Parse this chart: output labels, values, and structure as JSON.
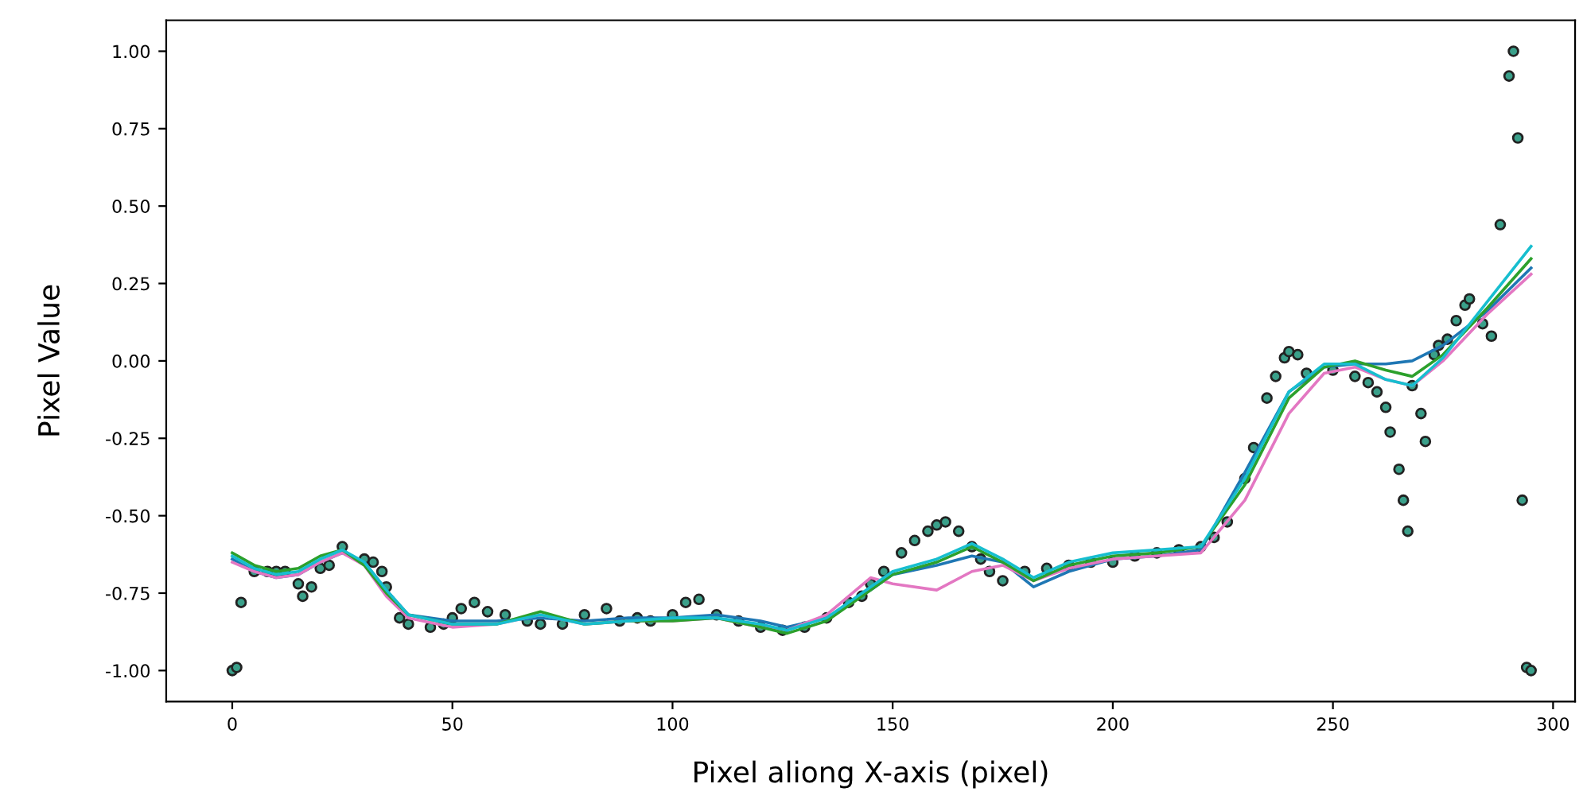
{
  "chart_data": {
    "type": "line",
    "xlabel": "Pixel aliong X-axis (pixel)",
    "ylabel": "Pixel Value",
    "xlim": [
      -15,
      305
    ],
    "ylim": [
      -1.1,
      1.1
    ],
    "xticks": [
      0,
      50,
      100,
      150,
      200,
      250,
      300
    ],
    "yticks": [
      {
        "value": -1,
        "label": "-1.00"
      },
      {
        "value": -0.75,
        "label": "-0.75"
      },
      {
        "value": -0.5,
        "label": "-0.50"
      },
      {
        "value": -0.25,
        "label": "-0.25"
      },
      {
        "value": 0,
        "label": "0.00"
      },
      {
        "value": 0.25,
        "label": "0.25"
      },
      {
        "value": 0.5,
        "label": "0.50"
      },
      {
        "value": 0.75,
        "label": "0.75"
      },
      {
        "value": 1,
        "label": "1.00"
      }
    ],
    "grid": false,
    "series": [
      {
        "type": "scatter",
        "color": "#3aa08a",
        "marker": "circle",
        "x": [
          0,
          1,
          2,
          5,
          8,
          10,
          12,
          15,
          16,
          18,
          20,
          22,
          25,
          30,
          32,
          34,
          35,
          38,
          40,
          45,
          48,
          50,
          52,
          55,
          58,
          62,
          67,
          70,
          75,
          80,
          85,
          88,
          92,
          95,
          100,
          103,
          106,
          110,
          115,
          120,
          125,
          130,
          135,
          140,
          143,
          145,
          148,
          152,
          155,
          158,
          160,
          162,
          165,
          168,
          170,
          172,
          175,
          180,
          185,
          190,
          195,
          200,
          205,
          210,
          215,
          220,
          223,
          226,
          230,
          232,
          235,
          237,
          239,
          240,
          242,
          244,
          250,
          255,
          258,
          260,
          262,
          263,
          265,
          266,
          267,
          268,
          270,
          271,
          273,
          274,
          276,
          278,
          280,
          281,
          284,
          286,
          288,
          290,
          291,
          292,
          293,
          294,
          295
        ],
        "values": [
          -1.0,
          -0.99,
          -0.78,
          -0.68,
          -0.68,
          -0.68,
          -0.68,
          -0.72,
          -0.76,
          -0.73,
          -0.67,
          -0.66,
          -0.6,
          -0.64,
          -0.65,
          -0.68,
          -0.73,
          -0.83,
          -0.85,
          -0.86,
          -0.85,
          -0.83,
          -0.8,
          -0.78,
          -0.81,
          -0.82,
          -0.84,
          -0.85,
          -0.85,
          -0.82,
          -0.8,
          -0.84,
          -0.83,
          -0.84,
          -0.82,
          -0.78,
          -0.77,
          -0.82,
          -0.84,
          -0.86,
          -0.87,
          -0.86,
          -0.83,
          -0.78,
          -0.76,
          -0.72,
          -0.68,
          -0.62,
          -0.58,
          -0.55,
          -0.53,
          -0.52,
          -0.55,
          -0.6,
          -0.64,
          -0.68,
          -0.71,
          -0.68,
          -0.67,
          -0.66,
          -0.65,
          -0.65,
          -0.63,
          -0.62,
          -0.61,
          -0.6,
          -0.57,
          -0.52,
          -0.38,
          -0.28,
          -0.12,
          -0.05,
          0.01,
          0.03,
          0.02,
          -0.04,
          -0.03,
          -0.05,
          -0.07,
          -0.1,
          -0.15,
          -0.23,
          -0.35,
          -0.45,
          -0.55,
          -0.08,
          -0.17,
          -0.26,
          0.02,
          0.05,
          0.07,
          0.13,
          0.18,
          0.2,
          0.12,
          0.08,
          0.44,
          0.92,
          1.0,
          0.72,
          -0.45,
          -0.99,
          -1.0
        ]
      },
      {
        "color": "#1f77b4",
        "x": [
          0,
          5,
          10,
          15,
          20,
          25,
          30,
          35,
          40,
          50,
          60,
          70,
          80,
          90,
          100,
          110,
          120,
          126,
          135,
          145,
          150,
          160,
          168,
          175,
          182,
          190,
          200,
          210,
          220,
          230,
          240,
          248,
          255,
          262,
          268,
          275,
          285,
          295
        ],
        "values": [
          -0.64,
          -0.68,
          -0.7,
          -0.69,
          -0.65,
          -0.62,
          -0.65,
          -0.74,
          -0.82,
          -0.84,
          -0.84,
          -0.83,
          -0.84,
          -0.83,
          -0.83,
          -0.82,
          -0.84,
          -0.86,
          -0.83,
          -0.74,
          -0.69,
          -0.66,
          -0.63,
          -0.65,
          -0.73,
          -0.68,
          -0.64,
          -0.63,
          -0.61,
          -0.36,
          -0.1,
          -0.02,
          -0.01,
          -0.01,
          0.0,
          0.05,
          0.16,
          0.3
        ]
      },
      {
        "color": "#e377c2",
        "x": [
          0,
          5,
          10,
          15,
          20,
          25,
          30,
          35,
          40,
          50,
          60,
          70,
          80,
          90,
          100,
          110,
          120,
          126,
          135,
          145,
          150,
          160,
          168,
          175,
          182,
          190,
          200,
          210,
          220,
          230,
          240,
          248,
          255,
          262,
          268,
          275,
          285,
          295
        ],
        "values": [
          -0.65,
          -0.68,
          -0.7,
          -0.69,
          -0.65,
          -0.62,
          -0.66,
          -0.76,
          -0.83,
          -0.86,
          -0.85,
          -0.82,
          -0.85,
          -0.84,
          -0.84,
          -0.83,
          -0.86,
          -0.87,
          -0.82,
          -0.7,
          -0.72,
          -0.74,
          -0.68,
          -0.66,
          -0.71,
          -0.67,
          -0.64,
          -0.63,
          -0.62,
          -0.45,
          -0.17,
          -0.04,
          -0.02,
          -0.06,
          -0.08,
          0.0,
          0.15,
          0.28
        ]
      },
      {
        "color": "#2ca02c",
        "x": [
          0,
          5,
          10,
          15,
          20,
          25,
          30,
          35,
          40,
          50,
          60,
          70,
          80,
          90,
          100,
          110,
          120,
          126,
          135,
          145,
          150,
          160,
          168,
          175,
          182,
          190,
          200,
          210,
          220,
          230,
          240,
          248,
          255,
          262,
          268,
          275,
          285,
          295
        ],
        "values": [
          -0.62,
          -0.66,
          -0.68,
          -0.67,
          -0.63,
          -0.61,
          -0.66,
          -0.75,
          -0.82,
          -0.85,
          -0.85,
          -0.81,
          -0.85,
          -0.84,
          -0.84,
          -0.83,
          -0.86,
          -0.88,
          -0.84,
          -0.74,
          -0.69,
          -0.65,
          -0.6,
          -0.65,
          -0.71,
          -0.66,
          -0.63,
          -0.62,
          -0.6,
          -0.4,
          -0.12,
          -0.02,
          0.0,
          -0.03,
          -0.05,
          0.02,
          0.17,
          0.33
        ]
      },
      {
        "color": "#17becf",
        "x": [
          0,
          5,
          10,
          15,
          20,
          25,
          30,
          35,
          40,
          50,
          60,
          70,
          80,
          90,
          100,
          110,
          120,
          126,
          135,
          145,
          150,
          160,
          168,
          175,
          182,
          190,
          200,
          210,
          220,
          230,
          240,
          248,
          255,
          262,
          268,
          275,
          285,
          295
        ],
        "values": [
          -0.63,
          -0.67,
          -0.69,
          -0.68,
          -0.64,
          -0.61,
          -0.65,
          -0.74,
          -0.82,
          -0.85,
          -0.85,
          -0.82,
          -0.85,
          -0.84,
          -0.83,
          -0.83,
          -0.85,
          -0.87,
          -0.83,
          -0.73,
          -0.68,
          -0.64,
          -0.59,
          -0.64,
          -0.7,
          -0.65,
          -0.62,
          -0.61,
          -0.6,
          -0.38,
          -0.1,
          -0.01,
          -0.01,
          -0.06,
          -0.08,
          0.01,
          0.19,
          0.37
        ]
      }
    ]
  }
}
